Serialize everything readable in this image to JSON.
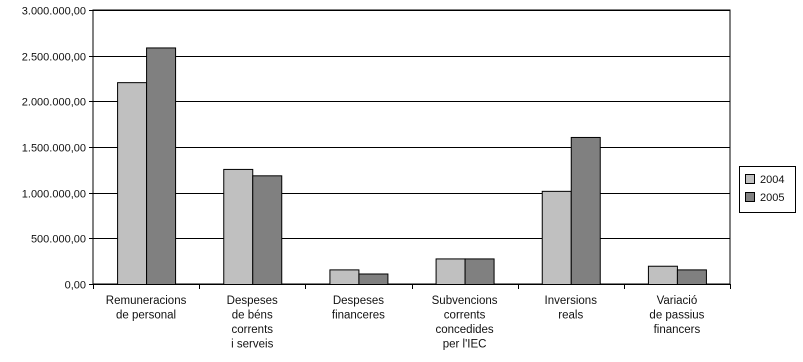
{
  "chart_data": {
    "type": "bar",
    "title": "",
    "xlabel": "",
    "ylabel": "",
    "ylim": [
      0,
      3000000
    ],
    "yticks": [
      "0,00",
      "500.000,00",
      "1.000.000,00",
      "1.500.000,00",
      "2.000.000,00",
      "2.500.000,00",
      "3.000.000,00"
    ],
    "ytick_values": [
      0,
      500000,
      1000000,
      1500000,
      2000000,
      2500000,
      3000000
    ],
    "grid": "horizontal",
    "legend_position": "right",
    "categories": [
      [
        "Remuneracions",
        "de personal"
      ],
      [
        "Despeses",
        "de béns",
        "corrents",
        "i serveis"
      ],
      [
        "Despeses",
        "financeres"
      ],
      [
        "Subvencions",
        "corrents",
        "concedides",
        "per l'IEC"
      ],
      [
        "Inversions",
        "reals"
      ],
      [
        "Variació",
        "de passius",
        "financers"
      ]
    ],
    "series": [
      {
        "name": "2004",
        "color": "#c0c0c0",
        "values": [
          2210000,
          1260000,
          160000,
          280000,
          1020000,
          200000
        ]
      },
      {
        "name": "2005",
        "color": "#808080",
        "values": [
          2590000,
          1190000,
          115000,
          280000,
          1610000,
          160000
        ]
      }
    ]
  }
}
